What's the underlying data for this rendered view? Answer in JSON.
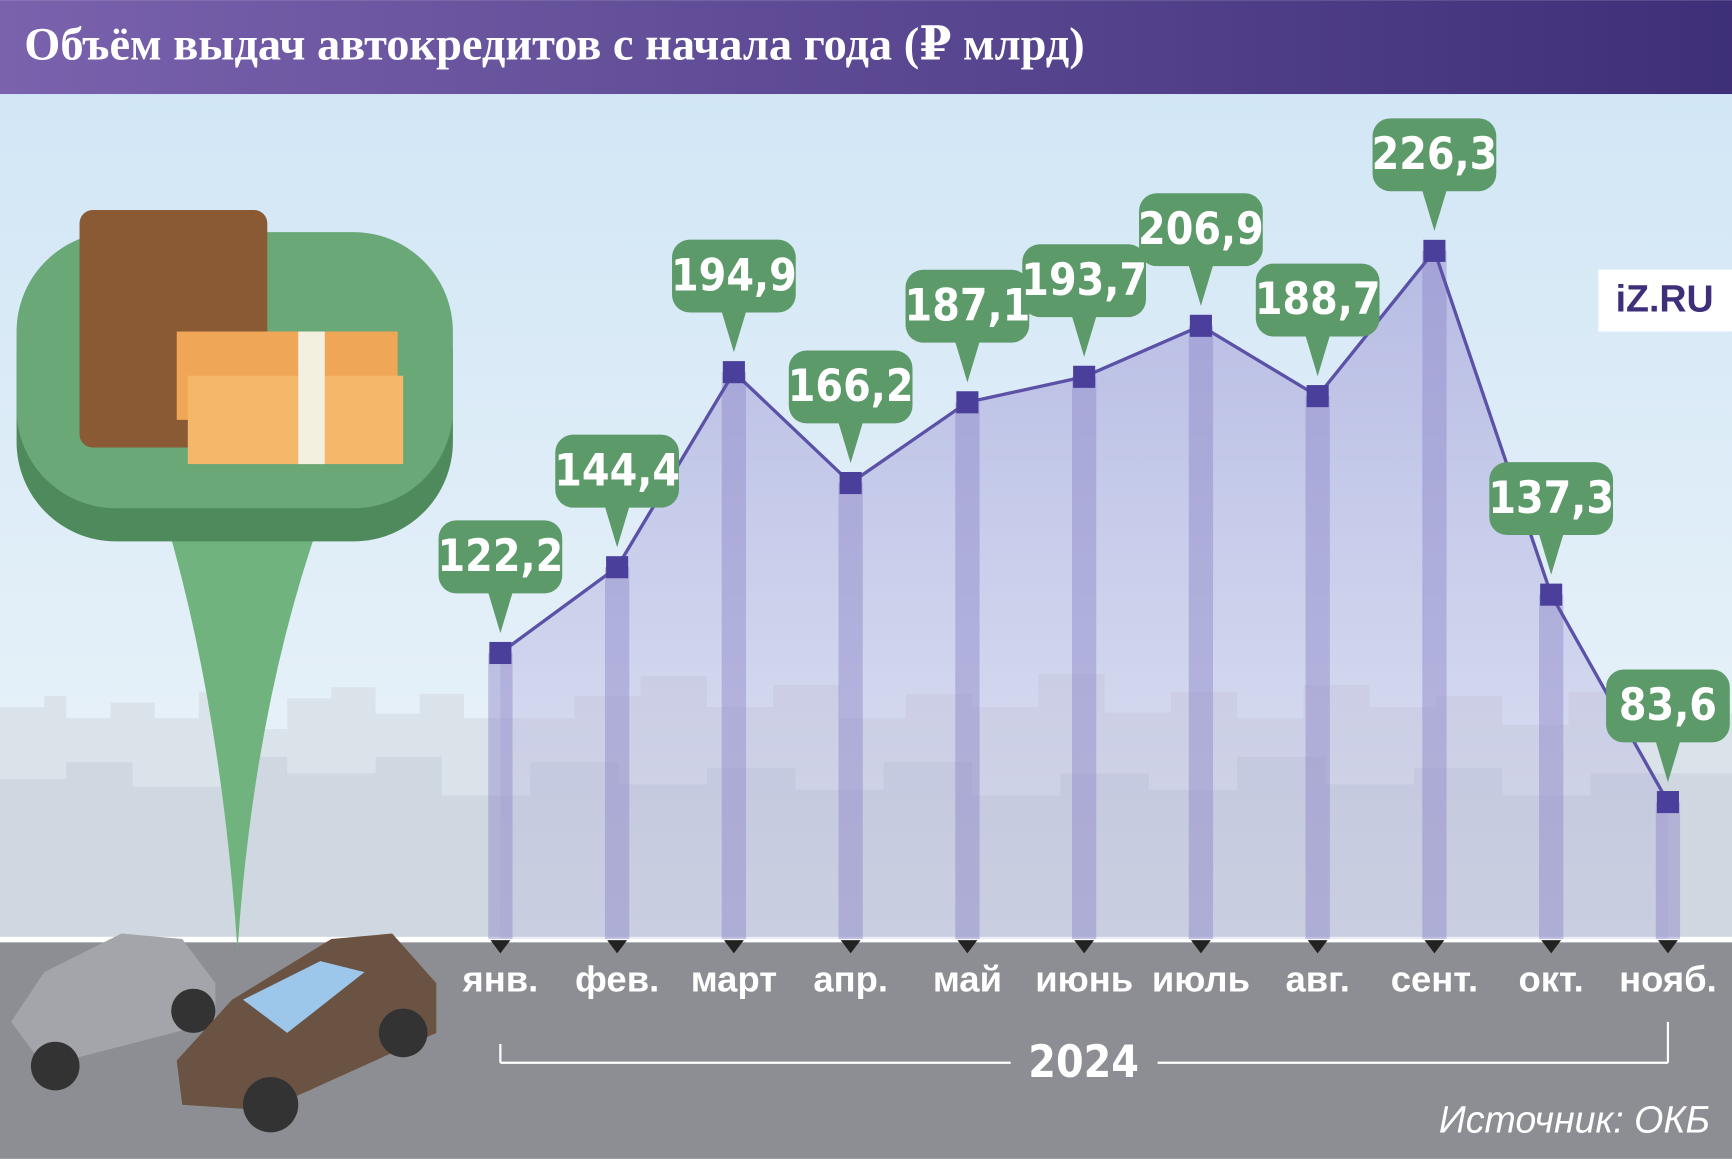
{
  "chart_data": {
    "type": "line",
    "title": "Объём выдач автокредитов с начала года (₽ млрд)",
    "categories": [
      "янв.",
      "фев.",
      "март",
      "апр.",
      "май",
      "июнь",
      "июль",
      "авг.",
      "сент.",
      "окт.",
      "нояб."
    ],
    "values": [
      122.2,
      144.4,
      194.9,
      166.2,
      187.1,
      193.7,
      206.9,
      188.7,
      226.3,
      137.3,
      83.6
    ],
    "value_labels": [
      "122,2",
      "144,4",
      "194,9",
      "166,2",
      "187,1",
      "193,7",
      "206,9",
      "188,7",
      "226,3",
      "137,3",
      "83,6"
    ],
    "x_label": "2024",
    "source": "Источник: ОКБ",
    "logo": "iZ.RU",
    "color": "#5b51a6",
    "label_color": "#5c9a6a"
  }
}
